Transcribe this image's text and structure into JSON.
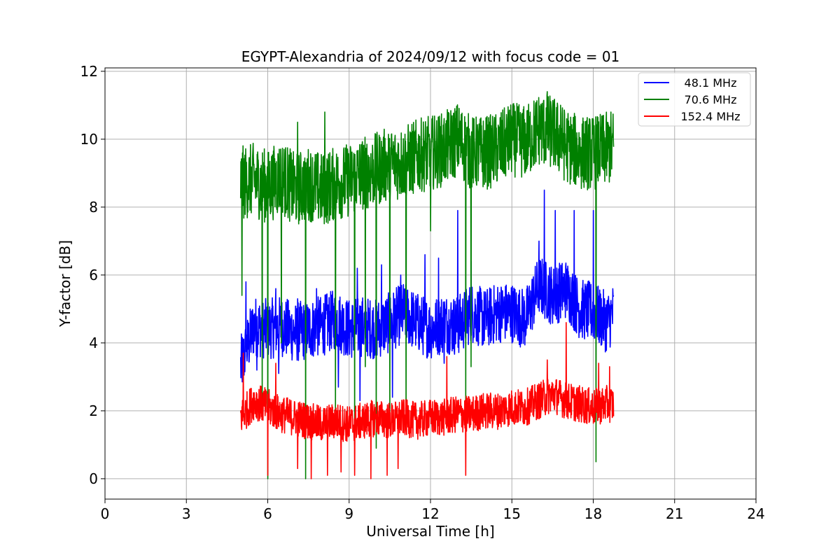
{
  "chart_data": {
    "type": "line",
    "title": "EGYPT-Alexandria of 2024/09/12 with focus code = 01",
    "xlabel": "Universal Time [h]",
    "ylabel": "Y-factor [dB]",
    "xlim": [
      0,
      24
    ],
    "ylim": [
      -0.6,
      12.1
    ],
    "xticks": [
      0,
      3,
      6,
      9,
      12,
      15,
      18,
      21,
      24
    ],
    "yticks": [
      0,
      2,
      4,
      6,
      8,
      10,
      12
    ],
    "xtick_labels": [
      "0",
      "3",
      "6",
      "9",
      "12",
      "15",
      "18",
      "21",
      "24"
    ],
    "ytick_labels": [
      "0",
      "2",
      "4",
      "6",
      "8",
      "10",
      "12"
    ],
    "grid": true,
    "legend_position": "top-right",
    "series": [
      {
        "name": "48.1 MHz",
        "color": "#0000ff",
        "x": [
          5.0,
          5.5,
          6.0,
          6.5,
          7.0,
          7.5,
          8.0,
          8.5,
          9.0,
          9.5,
          10.0,
          10.5,
          11.0,
          11.5,
          12.0,
          12.5,
          13.0,
          13.5,
          14.0,
          14.5,
          15.0,
          15.5,
          16.0,
          16.5,
          17.0,
          17.5,
          18.0,
          18.5,
          18.75
        ],
        "y": [
          3.3,
          4.5,
          4.4,
          4.5,
          4.3,
          4.4,
          4.5,
          4.7,
          4.4,
          4.5,
          4.4,
          4.6,
          4.9,
          4.6,
          4.4,
          4.6,
          4.5,
          4.9,
          4.7,
          4.9,
          4.9,
          4.7,
          5.7,
          5.4,
          5.6,
          5.0,
          4.9,
          4.6,
          4.9
        ],
        "spikes": [
          [
            5.2,
            5.8
          ],
          [
            6.3,
            5.6
          ],
          [
            7.1,
            5.3
          ],
          [
            7.8,
            5.6
          ],
          [
            9.3,
            6.2
          ],
          [
            10.2,
            6.3
          ],
          [
            10.9,
            6.0
          ],
          [
            11.8,
            6.6
          ],
          [
            12.3,
            6.5
          ],
          [
            13.0,
            7.9
          ],
          [
            13.5,
            6.4
          ],
          [
            16.0,
            7.0
          ],
          [
            16.2,
            8.5
          ],
          [
            16.6,
            7.9
          ],
          [
            17.3,
            7.9
          ],
          [
            18.0,
            7.9
          ],
          [
            5.6,
            3.2
          ],
          [
            6.4,
            3.1
          ],
          [
            8.6,
            2.7
          ],
          [
            9.4,
            2.3
          ],
          [
            10.6,
            2.4
          ],
          [
            12.5,
            3.4
          ],
          [
            15.5,
            4.2
          ]
        ]
      },
      {
        "name": "70.6 MHz",
        "color": "#008000",
        "x": [
          5.0,
          5.5,
          6.0,
          6.5,
          7.0,
          7.5,
          8.0,
          8.5,
          9.0,
          9.5,
          10.0,
          10.5,
          11.0,
          11.5,
          12.0,
          12.5,
          13.0,
          13.5,
          14.0,
          14.5,
          15.0,
          15.5,
          16.0,
          16.5,
          17.0,
          17.5,
          18.0,
          18.5,
          18.75
        ],
        "y": [
          8.7,
          8.8,
          8.6,
          8.9,
          8.5,
          8.7,
          8.5,
          8.7,
          8.8,
          9.0,
          9.1,
          9.3,
          9.3,
          9.5,
          9.6,
          9.7,
          10.0,
          9.6,
          9.6,
          9.7,
          10.0,
          9.9,
          10.3,
          10.2,
          9.8,
          9.6,
          9.6,
          9.7,
          9.8
        ],
        "spikes": [
          [
            5.05,
            5.4
          ],
          [
            6.5,
            4.0
          ],
          [
            5.8,
            2.3
          ],
          [
            6.0,
            0.0
          ],
          [
            7.1,
            10.5
          ],
          [
            7.4,
            0.0
          ],
          [
            8.1,
            10.8
          ],
          [
            8.5,
            2.0
          ],
          [
            9.2,
            1.0
          ],
          [
            9.6,
            3.3
          ],
          [
            10.0,
            0.9
          ],
          [
            10.5,
            1.7
          ],
          [
            11.1,
            1.5
          ],
          [
            12.0,
            7.3
          ],
          [
            12.9,
            10.9
          ],
          [
            13.3,
            2.0
          ],
          [
            13.5,
            3.3
          ],
          [
            16.3,
            11.4
          ],
          [
            16.8,
            11.0
          ],
          [
            18.1,
            0.5
          ]
        ]
      },
      {
        "name": "152.4 MHz",
        "color": "#ff0000",
        "x": [
          5.0,
          5.5,
          6.0,
          6.5,
          7.0,
          7.5,
          8.0,
          8.5,
          9.0,
          9.5,
          10.0,
          10.5,
          11.0,
          11.5,
          12.0,
          12.5,
          13.0,
          13.5,
          14.0,
          14.5,
          15.0,
          15.5,
          16.0,
          16.5,
          17.0,
          17.5,
          18.0,
          18.5,
          18.75
        ],
        "y": [
          1.8,
          2.3,
          2.1,
          1.9,
          1.8,
          1.7,
          1.6,
          1.7,
          1.6,
          1.7,
          1.8,
          1.7,
          1.8,
          1.7,
          1.8,
          1.8,
          1.9,
          1.9,
          2.0,
          2.0,
          2.1,
          2.1,
          2.3,
          2.5,
          2.3,
          2.2,
          2.1,
          2.2,
          2.2
        ],
        "spikes": [
          [
            5.1,
            3.7
          ],
          [
            6.0,
            0.1
          ],
          [
            6.3,
            3.4
          ],
          [
            7.1,
            0.3
          ],
          [
            7.6,
            0.0
          ],
          [
            8.2,
            0.1
          ],
          [
            8.7,
            0.2
          ],
          [
            9.2,
            0.1
          ],
          [
            9.8,
            0.0
          ],
          [
            10.4,
            0.1
          ],
          [
            10.8,
            0.3
          ],
          [
            12.6,
            3.6
          ],
          [
            13.3,
            0.1
          ],
          [
            16.3,
            3.5
          ],
          [
            17.0,
            4.6
          ],
          [
            18.2,
            0.1
          ],
          [
            18.2,
            3.4
          ],
          [
            18.6,
            3.3
          ]
        ]
      }
    ]
  }
}
